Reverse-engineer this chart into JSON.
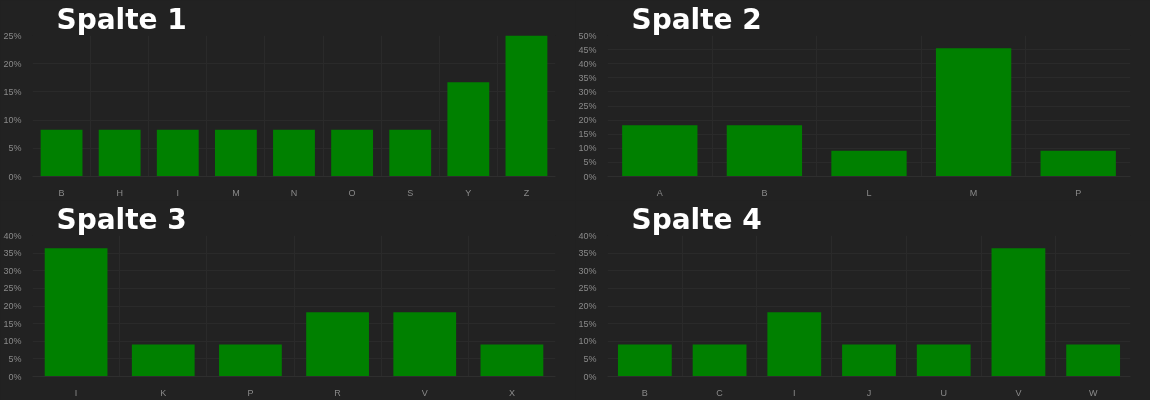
{
  "chart_data": [
    {
      "type": "bar",
      "title": "Spalte 1",
      "categories": [
        "B",
        "H",
        "I",
        "M",
        "N",
        "O",
        "S",
        "Y",
        "Z"
      ],
      "values": [
        8.3,
        8.3,
        8.3,
        8.3,
        8.3,
        8.3,
        8.3,
        16.7,
        25
      ],
      "color": "#008000",
      "ylim": [
        0,
        25
      ],
      "yticks": [
        {
          "value": 0,
          "label": "0%"
        },
        {
          "value": 5,
          "label": "5%"
        },
        {
          "value": 10,
          "label": "10%"
        },
        {
          "value": 15,
          "label": "15%"
        },
        {
          "value": 20,
          "label": "20%"
        },
        {
          "value": 25,
          "label": "25%"
        }
      ],
      "grid": true
    },
    {
      "type": "bar",
      "title": "Spalte 2",
      "categories": [
        "A",
        "B",
        "L",
        "M",
        "P"
      ],
      "values": [
        18.2,
        18.2,
        9.1,
        45.5,
        9.1
      ],
      "color": "#008000",
      "ylim": [
        0,
        50
      ],
      "yticks": [
        {
          "value": 0,
          "label": "0%"
        },
        {
          "value": 5,
          "label": "5%"
        },
        {
          "value": 10,
          "label": "10%"
        },
        {
          "value": 15,
          "label": "15%"
        },
        {
          "value": 20,
          "label": "20%"
        },
        {
          "value": 25,
          "label": "25%"
        },
        {
          "value": 30,
          "label": "30%"
        },
        {
          "value": 35,
          "label": "35%"
        },
        {
          "value": 40,
          "label": "40%"
        },
        {
          "value": 45,
          "label": "45%"
        },
        {
          "value": 50,
          "label": "50%"
        }
      ],
      "grid": true
    },
    {
      "type": "bar",
      "title": "Spalte 3",
      "categories": [
        "I",
        "K",
        "P",
        "R",
        "V",
        "X"
      ],
      "values": [
        36.4,
        9.1,
        9.1,
        18.2,
        18.2,
        9.1
      ],
      "color": "#008000",
      "ylim": [
        0,
        40
      ],
      "yticks": [
        {
          "value": 0,
          "label": "0%"
        },
        {
          "value": 5,
          "label": "5%"
        },
        {
          "value": 10,
          "label": "10%"
        },
        {
          "value": 15,
          "label": "15%"
        },
        {
          "value": 20,
          "label": "20%"
        },
        {
          "value": 25,
          "label": "25%"
        },
        {
          "value": 30,
          "label": "30%"
        },
        {
          "value": 35,
          "label": "35%"
        },
        {
          "value": 40,
          "label": "40%"
        }
      ],
      "grid": true
    },
    {
      "type": "bar",
      "title": "Spalte 4",
      "categories": [
        "B",
        "C",
        "I",
        "J",
        "U",
        "V",
        "W"
      ],
      "values": [
        9.1,
        9.1,
        18.2,
        9.1,
        9.1,
        36.4,
        9.1
      ],
      "color": "#008000",
      "ylim": [
        0,
        40
      ],
      "yticks": [
        {
          "value": 0,
          "label": "0%"
        },
        {
          "value": 5,
          "label": "5%"
        },
        {
          "value": 10,
          "label": "10%"
        },
        {
          "value": 15,
          "label": "15%"
        },
        {
          "value": 20,
          "label": "20%"
        },
        {
          "value": 25,
          "label": "25%"
        },
        {
          "value": 30,
          "label": "30%"
        },
        {
          "value": 35,
          "label": "35%"
        },
        {
          "value": 40,
          "label": "40%"
        }
      ],
      "grid": true
    }
  ]
}
